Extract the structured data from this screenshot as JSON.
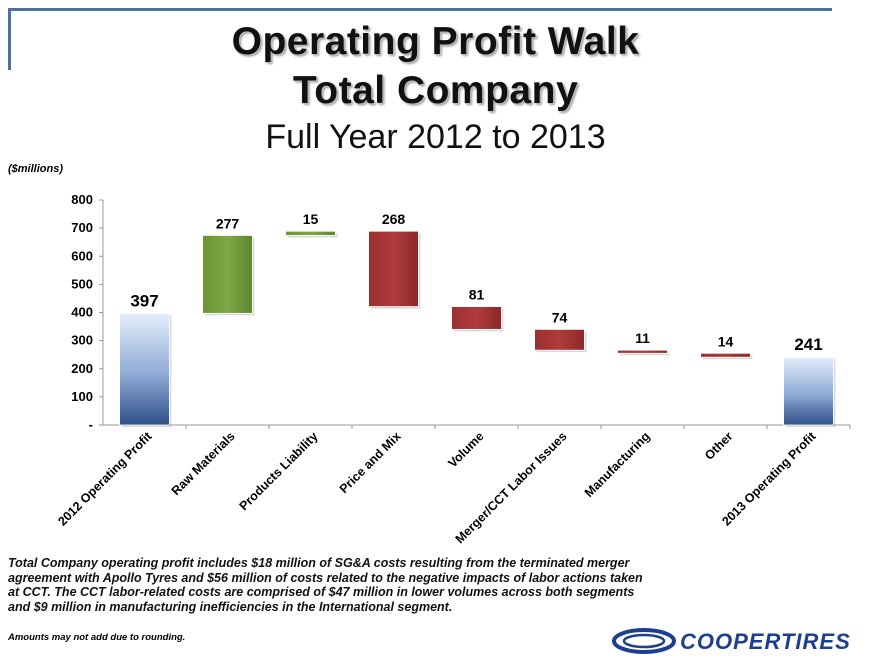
{
  "header": {
    "title_line1": "Operating Profit Walk",
    "title_line2": "Total Company",
    "subtitle": "Full Year 2012 to 2013"
  },
  "units_label": "($millions)",
  "chart_data": {
    "type": "bar",
    "subtype": "waterfall",
    "ylim": [
      0,
      800
    ],
    "yticks": [
      {
        "value": 0,
        "label": "-"
      },
      {
        "value": 100,
        "label": "100"
      },
      {
        "value": 200,
        "label": "200"
      },
      {
        "value": 300,
        "label": "300"
      },
      {
        "value": 400,
        "label": "400"
      },
      {
        "value": 500,
        "label": "500"
      },
      {
        "value": 600,
        "label": "600"
      },
      {
        "value": 700,
        "label": "700"
      },
      {
        "value": 800,
        "label": "800"
      }
    ],
    "grid": false,
    "bars": [
      {
        "category": "2012 Operating Profit",
        "label": "397",
        "start": 0,
        "end": 397,
        "kind": "total"
      },
      {
        "category": "Raw Materials",
        "label": "277",
        "start": 397,
        "end": 674,
        "kind": "increase"
      },
      {
        "category": "Products Liability",
        "label": "15",
        "start": 674,
        "end": 689,
        "kind": "increase"
      },
      {
        "category": "Price and Mix",
        "label": "268",
        "start": 689,
        "end": 421,
        "kind": "decrease"
      },
      {
        "category": "Volume",
        "label": "81",
        "start": 421,
        "end": 340,
        "kind": "decrease"
      },
      {
        "category": "Merger/CCT Labor Issues",
        "label": "74",
        "start": 340,
        "end": 266,
        "kind": "decrease"
      },
      {
        "category": "Manufacturing",
        "label": "11",
        "start": 266,
        "end": 255,
        "kind": "decrease"
      },
      {
        "category": "Other",
        "label": "14",
        "start": 255,
        "end": 241,
        "kind": "decrease"
      },
      {
        "category": "2013 Operating Profit",
        "label": "241",
        "start": 0,
        "end": 241,
        "kind": "total"
      }
    ],
    "colors": {
      "total": "#6f8fc4",
      "increase": "#6f9a3a",
      "decrease": "#a83535"
    }
  },
  "note": "Total Company operating profit includes $18 million of SG&A costs resulting from the terminated merger agreement with Apollo Tyres and $56 million of costs related to the negative impacts of labor actions taken at CCT.  The CCT labor-related costs  are comprised of $47 million in lower volumes across both segments and $9 million in manufacturing inefficiencies in the International segment.",
  "footnote": "Amounts may not add due to rounding.",
  "logo_text": "COOPERTIRES"
}
